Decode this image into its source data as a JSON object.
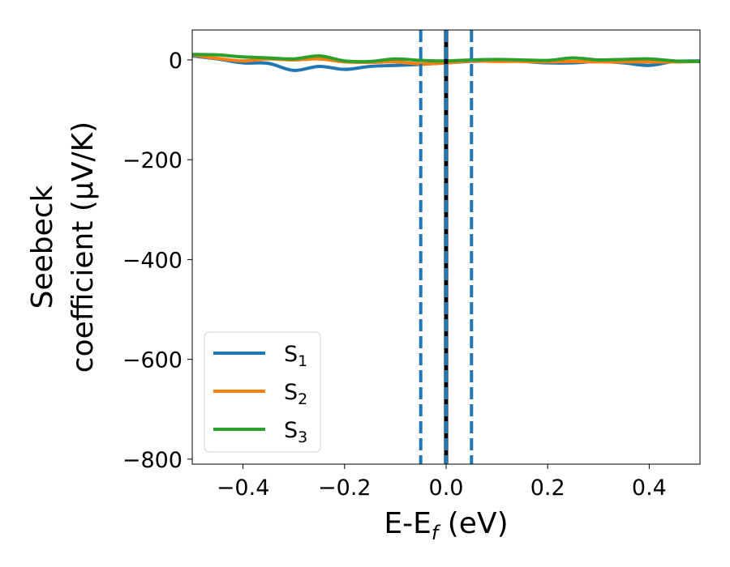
{
  "chart_data": {
    "type": "line",
    "xlabel": {
      "base": "E-E",
      "sub": "f",
      "unit": " (eV)"
    },
    "ylabel": {
      "line1": "Seebeck",
      "line2": "coefficient  (μV/K)"
    },
    "xlim": [
      -0.5,
      0.5
    ],
    "ylim": [
      -810,
      60
    ],
    "grid": false,
    "legend_position": "lower-left",
    "x_ticks": [
      {
        "value": -0.4,
        "label": "−0.4"
      },
      {
        "value": -0.2,
        "label": "−0.2"
      },
      {
        "value": 0.0,
        "label": "0.0"
      },
      {
        "value": 0.2,
        "label": "0.2"
      },
      {
        "value": 0.4,
        "label": "0.4"
      }
    ],
    "y_ticks": [
      {
        "value": 0,
        "label": "0"
      },
      {
        "value": -200,
        "label": "−200"
      },
      {
        "value": -400,
        "label": "−400"
      },
      {
        "value": -600,
        "label": "−600"
      },
      {
        "value": -800,
        "label": "−800"
      }
    ],
    "x": [
      -0.5,
      -0.45,
      -0.4,
      -0.35,
      -0.3,
      -0.25,
      -0.2,
      -0.15,
      -0.1,
      -0.05,
      0.0,
      0.05,
      0.1,
      0.15,
      0.2,
      0.25,
      0.3,
      0.35,
      0.4,
      0.45,
      0.5
    ],
    "series": [
      {
        "name": "S",
        "sub": "1",
        "color": "#1f77b4",
        "values": [
          8,
          2,
          -6,
          -7,
          -21,
          -13,
          -19,
          -13,
          -11,
          -9,
          -6,
          -3,
          -2,
          -3,
          -6,
          -6,
          -3,
          -6,
          -11,
          -3,
          -2
        ]
      },
      {
        "name": "S",
        "sub": "2",
        "color": "#ff7f0e",
        "values": [
          10,
          3,
          -2,
          2,
          0,
          2,
          -4,
          -5,
          -4,
          -8,
          -6,
          -2,
          -3,
          -3,
          -4,
          -3,
          -4,
          -4,
          -4,
          -4,
          -3
        ]
      },
      {
        "name": "S",
        "sub": "3",
        "color": "#2ca02c",
        "values": [
          11,
          10,
          6,
          4,
          2,
          8,
          -2,
          -3,
          2,
          -1,
          -2,
          0,
          1,
          0,
          -1,
          4,
          0,
          1,
          2,
          -2,
          -3
        ]
      }
    ],
    "vlines": [
      {
        "x": -0.05,
        "color": "#1f77b4",
        "style": "dashed"
      },
      {
        "x": 0.0,
        "color": "#000000",
        "style": "solid"
      },
      {
        "x": 0.0,
        "color": "#1f77b4",
        "style": "dashed"
      },
      {
        "x": 0.05,
        "color": "#1f77b4",
        "style": "dashed"
      }
    ]
  }
}
